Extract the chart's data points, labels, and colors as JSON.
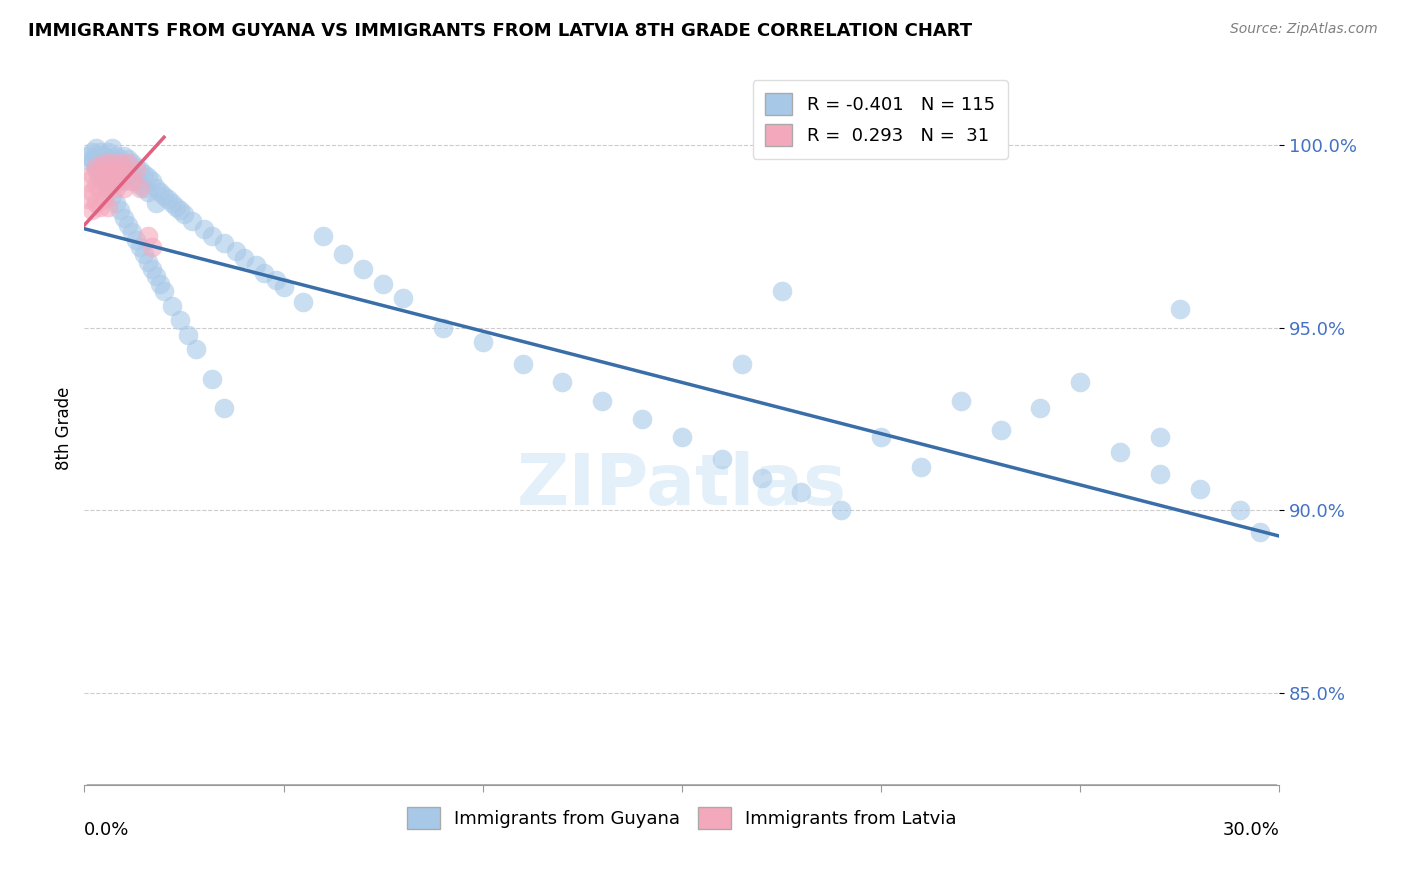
{
  "title": "IMMIGRANTS FROM GUYANA VS IMMIGRANTS FROM LATVIA 8TH GRADE CORRELATION CHART",
  "source": "Source: ZipAtlas.com",
  "ylabel": "8th Grade",
  "yticks": [
    "85.0%",
    "90.0%",
    "95.0%",
    "100.0%"
  ],
  "ytick_vals": [
    0.85,
    0.9,
    0.95,
    1.0
  ],
  "xlim": [
    0.0,
    0.3
  ],
  "ylim": [
    0.825,
    1.02
  ],
  "legend_blue_R": "-0.401",
  "legend_blue_N": "115",
  "legend_pink_R": "0.293",
  "legend_pink_N": "31",
  "blue_color": "#a8c8e8",
  "pink_color": "#f4a8bc",
  "blue_line_color": "#3a6ea8",
  "pink_line_color": "#e06080",
  "watermark": "ZIPatlas",
  "blue_scatter_x": [
    0.001,
    0.002,
    0.002,
    0.003,
    0.003,
    0.003,
    0.004,
    0.004,
    0.004,
    0.005,
    0.005,
    0.005,
    0.006,
    0.006,
    0.006,
    0.007,
    0.007,
    0.007,
    0.007,
    0.008,
    0.008,
    0.008,
    0.009,
    0.009,
    0.01,
    0.01,
    0.01,
    0.011,
    0.011,
    0.012,
    0.012,
    0.013,
    0.013,
    0.014,
    0.014,
    0.015,
    0.015,
    0.016,
    0.016,
    0.017,
    0.018,
    0.018,
    0.019,
    0.02,
    0.021,
    0.022,
    0.023,
    0.024,
    0.025,
    0.027,
    0.03,
    0.032,
    0.035,
    0.038,
    0.04,
    0.043,
    0.045,
    0.048,
    0.05,
    0.055,
    0.06,
    0.065,
    0.07,
    0.075,
    0.08,
    0.09,
    0.1,
    0.11,
    0.12,
    0.13,
    0.14,
    0.15,
    0.16,
    0.17,
    0.175,
    0.18,
    0.19,
    0.2,
    0.21,
    0.22,
    0.23,
    0.24,
    0.25,
    0.26,
    0.27,
    0.275,
    0.28,
    0.29,
    0.295,
    0.002,
    0.003,
    0.004,
    0.005,
    0.006,
    0.007,
    0.008,
    0.009,
    0.01,
    0.011,
    0.012,
    0.013,
    0.014,
    0.015,
    0.016,
    0.017,
    0.018,
    0.019,
    0.02,
    0.022,
    0.024,
    0.026,
    0.028,
    0.032,
    0.035,
    0.165,
    0.27
  ],
  "blue_scatter_y": [
    0.997,
    0.998,
    0.995,
    0.999,
    0.997,
    0.993,
    0.998,
    0.995,
    0.991,
    0.997,
    0.994,
    0.99,
    0.998,
    0.995,
    0.991,
    0.999,
    0.996,
    0.993,
    0.989,
    0.997,
    0.994,
    0.99,
    0.996,
    0.993,
    0.997,
    0.994,
    0.99,
    0.996,
    0.992,
    0.995,
    0.991,
    0.994,
    0.99,
    0.993,
    0.989,
    0.992,
    0.988,
    0.991,
    0.987,
    0.99,
    0.988,
    0.984,
    0.987,
    0.986,
    0.985,
    0.984,
    0.983,
    0.982,
    0.981,
    0.979,
    0.977,
    0.975,
    0.973,
    0.971,
    0.969,
    0.967,
    0.965,
    0.963,
    0.961,
    0.957,
    0.975,
    0.97,
    0.966,
    0.962,
    0.958,
    0.95,
    0.946,
    0.94,
    0.935,
    0.93,
    0.925,
    0.92,
    0.914,
    0.909,
    0.96,
    0.905,
    0.9,
    0.92,
    0.912,
    0.93,
    0.922,
    0.928,
    0.935,
    0.916,
    0.91,
    0.955,
    0.906,
    0.9,
    0.894,
    0.996,
    0.994,
    0.992,
    0.99,
    0.988,
    0.986,
    0.984,
    0.982,
    0.98,
    0.978,
    0.976,
    0.974,
    0.972,
    0.97,
    0.968,
    0.966,
    0.964,
    0.962,
    0.96,
    0.956,
    0.952,
    0.948,
    0.944,
    0.936,
    0.928,
    0.94,
    0.92
  ],
  "pink_scatter_x": [
    0.001,
    0.001,
    0.002,
    0.002,
    0.002,
    0.003,
    0.003,
    0.003,
    0.004,
    0.004,
    0.004,
    0.005,
    0.005,
    0.005,
    0.006,
    0.006,
    0.006,
    0.007,
    0.007,
    0.008,
    0.008,
    0.009,
    0.009,
    0.01,
    0.01,
    0.011,
    0.012,
    0.013,
    0.014,
    0.016,
    0.017
  ],
  "pink_scatter_y": [
    0.99,
    0.985,
    0.992,
    0.987,
    0.982,
    0.994,
    0.989,
    0.984,
    0.993,
    0.988,
    0.983,
    0.995,
    0.99,
    0.985,
    0.993,
    0.988,
    0.983,
    0.995,
    0.99,
    0.993,
    0.988,
    0.995,
    0.99,
    0.993,
    0.988,
    0.995,
    0.99,
    0.993,
    0.988,
    0.975,
    0.972
  ],
  "blue_trendline_x": [
    0.0,
    0.3
  ],
  "blue_trendline_y": [
    0.977,
    0.893
  ],
  "pink_trendline_x": [
    0.0,
    0.02
  ],
  "pink_trendline_y": [
    0.978,
    1.002
  ]
}
